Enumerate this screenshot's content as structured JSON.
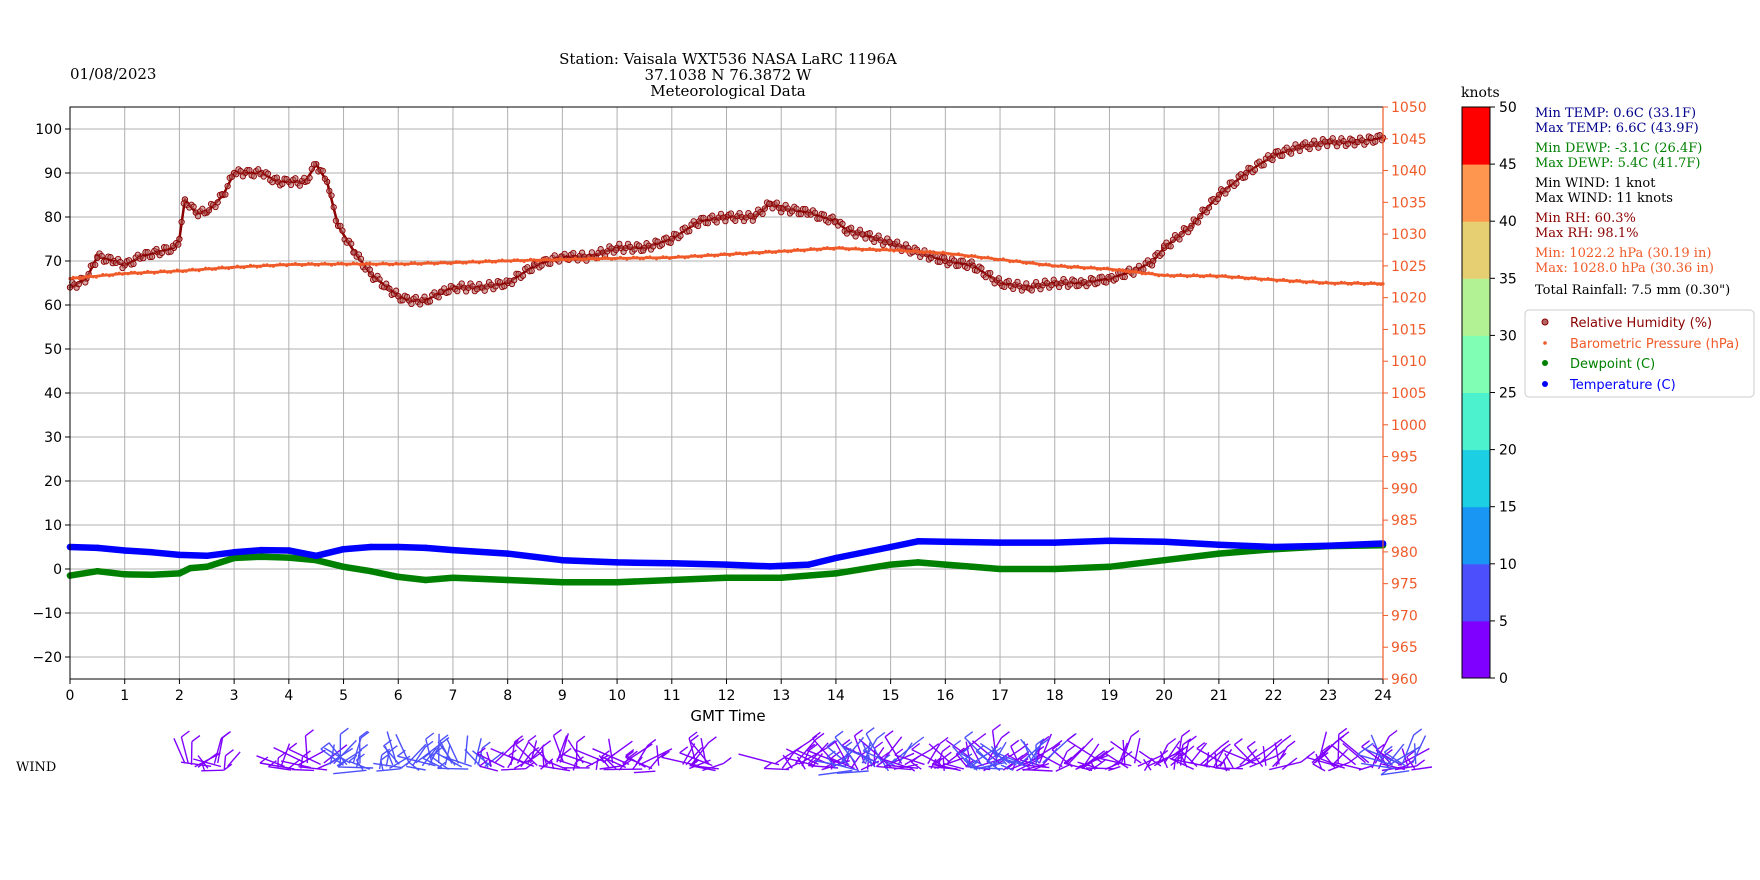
{
  "header": {
    "date": "01/08/2023",
    "station_line1": "Station:  Vaisala WXT536  NASA LaRC 1196A",
    "station_line2": "37.1038 N 76.3872 W",
    "station_line3": "Meteorological Data"
  },
  "stats": {
    "min_temp": "Min TEMP: 0.6C (33.1F)",
    "max_temp": "Max TEMP: 6.6C (43.9F)",
    "min_dewp": "Min DEWP: -3.1C (26.4F)",
    "max_dewp": "Max DEWP: 5.4C (41.7F)",
    "min_wind": "Min WIND: 1 knot",
    "max_wind": "Max WIND: 11 knots",
    "min_rh": "Min RH: 60.3%",
    "max_rh": "Max RH: 98.1%",
    "min_pres": "Min: 1022.2 hPa (30.19 in)",
    "max_pres": "Max: 1028.0 hPa (30.36 in)",
    "rainfall": "Total Rainfall: 7.5 mm (0.30\")"
  },
  "colors": {
    "header": "#006400",
    "temp": "#0000ff",
    "temp_stat": "#00008b",
    "dewpoint": "#008000",
    "rh": "#8b0000",
    "pressure": "#f05a28",
    "grid": "#b0b0b0"
  },
  "wind_label": "WIND",
  "colorbar": {
    "unit": "knots",
    "ticks": [
      "0",
      "5",
      "10",
      "15",
      "20",
      "25",
      "30",
      "35",
      "40",
      "45",
      "50"
    ],
    "colors": [
      "#7f00ff",
      "#4c50fc",
      "#1996f3",
      "#1dcfe3",
      "#4cf2ce",
      "#80feb3",
      "#b2f295",
      "#e6cf73",
      "#ff964f",
      "#ff5027",
      "#ff0000"
    ]
  },
  "chart_data": {
    "type": "scatter",
    "xlabel": "GMT Time",
    "x_ticks": [
      "0",
      "1",
      "2",
      "3",
      "4",
      "5",
      "6",
      "7",
      "8",
      "9",
      "10",
      "11",
      "12",
      "13",
      "14",
      "15",
      "16",
      "17",
      "18",
      "19",
      "20",
      "21",
      "22",
      "23",
      "24"
    ],
    "xlim": [
      0,
      24
    ],
    "ylim_left": [
      -25,
      105
    ],
    "y_ticks_left": [
      "100",
      "90",
      "80",
      "70",
      "60",
      "50",
      "40",
      "30",
      "20",
      "10",
      "0",
      "−10",
      "−20"
    ],
    "ylim_right": [
      960,
      1050
    ],
    "y_ticks_right": [
      "1050",
      "1045",
      "1040",
      "1035",
      "1030",
      "1025",
      "1020",
      "1015",
      "1010",
      "1005",
      "1000",
      "995",
      "990",
      "985",
      "980",
      "975",
      "970",
      "965",
      "960"
    ],
    "grid": true,
    "legend_position": "right",
    "legend": [
      "Relative Humidity (%)",
      "Barometric Pressure (hPa)",
      "Dewpoint (C)",
      "Temperature (C)"
    ],
    "series": [
      {
        "name": "Relative Humidity (%)",
        "axis": "left",
        "x": [
          0,
          0.3,
          0.5,
          0.8,
          1.0,
          1.3,
          1.6,
          1.9,
          2.0,
          2.1,
          2.3,
          2.5,
          2.8,
          3.0,
          3.2,
          3.5,
          3.8,
          4.0,
          4.3,
          4.5,
          4.7,
          4.9,
          5.2,
          5.5,
          5.8,
          6.0,
          6.2,
          6.5,
          6.8,
          7.0,
          7.5,
          8.0,
          8.5,
          9.0,
          9.5,
          10.0,
          10.5,
          11.0,
          11.5,
          12.0,
          12.5,
          12.8,
          13.0,
          13.5,
          14.0,
          14.2,
          14.5,
          15.0,
          15.5,
          16.0,
          16.5,
          17.0,
          17.5,
          18.0,
          18.5,
          19.0,
          19.5,
          19.8,
          20.0,
          20.5,
          21.0,
          21.5,
          22.0,
          22.5,
          23.0,
          23.5,
          24.0
        ],
        "y": [
          64,
          66,
          71,
          70,
          69,
          71,
          72,
          73,
          75,
          84,
          81,
          81,
          85,
          90,
          90,
          90,
          88,
          88,
          88,
          92,
          88,
          78,
          72,
          67,
          64,
          62,
          61,
          61,
          63,
          64,
          64,
          65,
          69,
          71,
          71,
          73,
          73,
          75,
          79,
          80,
          80,
          83,
          82,
          81,
          79,
          77,
          76,
          74,
          72,
          70,
          69,
          65,
          64,
          65,
          65,
          66,
          68,
          70,
          73,
          78,
          85,
          90,
          94,
          96,
          97,
          97,
          98
        ]
      },
      {
        "name": "Barometric Pressure (hPa)",
        "axis": "right",
        "x": [
          0,
          1,
          2,
          3,
          4,
          5,
          6,
          7,
          8,
          9,
          10,
          11,
          12,
          13,
          14,
          14.5,
          15,
          16,
          17,
          18,
          19,
          20,
          21,
          22,
          23,
          24
        ],
        "y": [
          1023.0,
          1023.8,
          1024.2,
          1024.8,
          1025.2,
          1025.3,
          1025.3,
          1025.5,
          1025.8,
          1026.0,
          1026.2,
          1026.3,
          1026.8,
          1027.3,
          1027.8,
          1027.6,
          1027.5,
          1027.0,
          1026.0,
          1025.0,
          1024.5,
          1023.5,
          1023.4,
          1022.8,
          1022.3,
          1022.2
        ]
      },
      {
        "name": "Dewpoint (C)",
        "axis": "left",
        "x": [
          0,
          0.5,
          1.0,
          1.5,
          2.0,
          2.2,
          2.5,
          3.0,
          3.5,
          4.0,
          4.5,
          5.0,
          5.5,
          6.0,
          6.5,
          7.0,
          8.0,
          9.0,
          10.0,
          11.0,
          12.0,
          13.0,
          14.0,
          15.0,
          15.5,
          16.0,
          16.5,
          17.0,
          18.0,
          19.0,
          20.0,
          21.0,
          22.0,
          23.0,
          24.0
        ],
        "y": [
          -1.5,
          -0.5,
          -1.2,
          -1.3,
          -1.0,
          0.2,
          0.5,
          2.5,
          2.8,
          2.6,
          2.0,
          0.5,
          -0.5,
          -1.8,
          -2.5,
          -2.0,
          -2.5,
          -3.0,
          -3.0,
          -2.5,
          -2.0,
          -2.0,
          -1.0,
          1.0,
          1.5,
          1.0,
          0.5,
          0.0,
          0.0,
          0.5,
          2.0,
          3.5,
          4.5,
          5.2,
          5.4
        ]
      },
      {
        "name": "Temperature (C)",
        "axis": "left",
        "x": [
          0,
          0.5,
          1.0,
          1.5,
          2.0,
          2.5,
          3.0,
          3.5,
          4.0,
          4.5,
          5.0,
          5.5,
          6.0,
          6.5,
          7.0,
          8.0,
          9.0,
          10.0,
          11.0,
          12.0,
          12.8,
          13.5,
          14.0,
          15.0,
          15.5,
          16.0,
          17.0,
          18.0,
          19.0,
          20.0,
          21.0,
          22.0,
          23.0,
          24.0
        ],
        "y": [
          5.0,
          4.8,
          4.2,
          3.8,
          3.2,
          3.0,
          3.8,
          4.3,
          4.2,
          3.0,
          4.5,
          5.0,
          5.0,
          4.8,
          4.3,
          3.5,
          2.0,
          1.5,
          1.3,
          1.0,
          0.6,
          1.0,
          2.5,
          5.0,
          6.3,
          6.2,
          6.0,
          6.0,
          6.4,
          6.2,
          5.5,
          5.0,
          5.3,
          5.8
        ]
      }
    ],
    "wind_barbs": {
      "spans": [
        [
          2.1,
          2.9,
          "#7f00ff"
        ],
        [
          3.8,
          4.7,
          "#7f00ff"
        ],
        [
          4.7,
          7.7,
          "#4c50fc"
        ],
        [
          7.7,
          10.8,
          "#7f00ff"
        ],
        [
          11.2,
          11.9,
          "#7f00ff"
        ],
        [
          12.9,
          15.1,
          "#7f00ff"
        ],
        [
          14.0,
          15.2,
          "#4c50fc"
        ],
        [
          15.2,
          18.5,
          "#7f00ff"
        ],
        [
          16.4,
          17.8,
          "#4c50fc"
        ],
        [
          18.5,
          22.2,
          "#7f00ff"
        ],
        [
          22.7,
          23.3,
          "#7f00ff"
        ],
        [
          23.5,
          24.6,
          "#7f00ff"
        ],
        [
          24.0,
          24.6,
          "#4c50fc"
        ]
      ]
    }
  }
}
